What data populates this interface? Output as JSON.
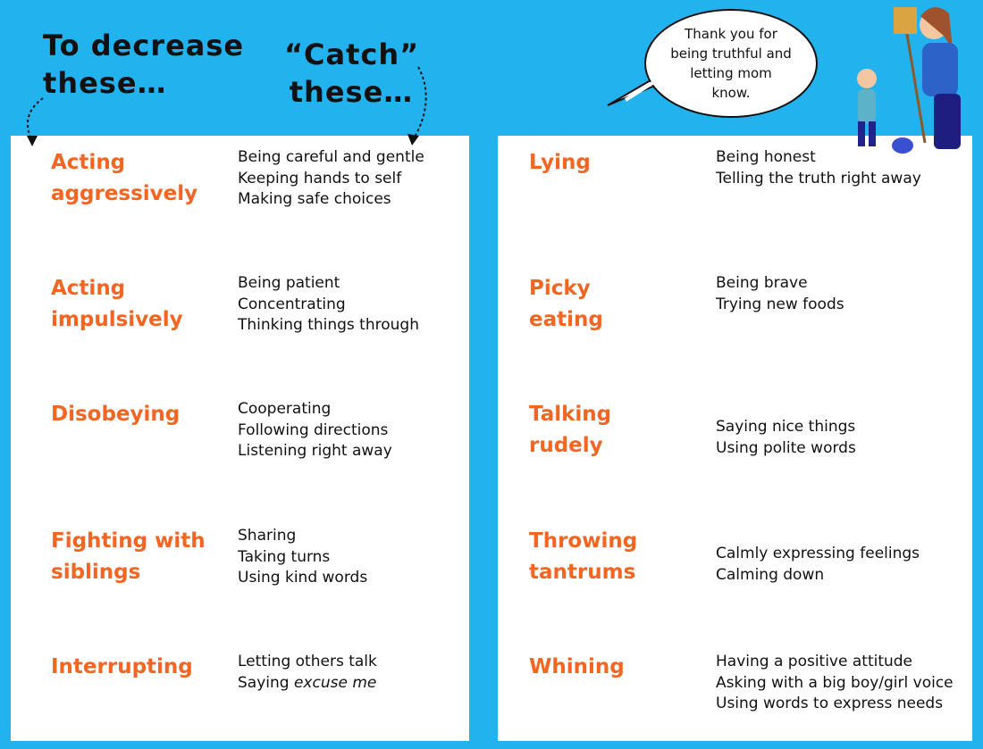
{
  "header": {
    "decrease_heading": [
      "To decrease",
      "these…"
    ],
    "catch_heading": [
      "“Catch”",
      "these…"
    ]
  },
  "speech_bubble": [
    "Thank you for",
    "being truthful and",
    "letting mom",
    "know."
  ],
  "panels": [
    {
      "rows": [
        {
          "behavior": [
            "Acting",
            "aggressively"
          ],
          "replacements": [
            "Being careful and gentle",
            "Keeping hands to self",
            "Making safe choices"
          ]
        },
        {
          "behavior": [
            "Acting",
            "impulsively"
          ],
          "replacements": [
            "Being patient",
            "Concentrating",
            "Thinking things through"
          ]
        },
        {
          "behavior": [
            "Disobeying"
          ],
          "replacements": [
            "Cooperating",
            "Following directions",
            "Listening right away"
          ]
        },
        {
          "behavior": [
            "Fighting with",
            "siblings"
          ],
          "replacements": [
            "Sharing",
            "Taking turns",
            "Using kind words"
          ]
        },
        {
          "behavior": [
            "Interrupting"
          ],
          "replacements": [
            "Letting others talk",
            {
              "plain": "Saying",
              "italic": "excuse me"
            }
          ]
        }
      ]
    },
    {
      "rows": [
        {
          "behavior": [
            "Lying"
          ],
          "replacements": [
            "Being honest",
            "Telling the truth right away"
          ]
        },
        {
          "behavior": [
            "Picky",
            "eating"
          ],
          "replacements": [
            "Being brave",
            "Trying new foods"
          ]
        },
        {
          "behavior": [
            "Talking",
            "rudely"
          ],
          "replacements": [
            "Saying nice things",
            "Using polite words"
          ]
        },
        {
          "behavior": [
            "Throwing",
            "tantrums"
          ],
          "replacements": [
            "Calmly expressing feelings",
            "Calming down"
          ]
        },
        {
          "behavior": [
            "Whining"
          ],
          "replacements": [
            "Having a positive attitude",
            "Asking with a big boy/girl voice",
            "Using words to express needs"
          ]
        }
      ]
    }
  ]
}
